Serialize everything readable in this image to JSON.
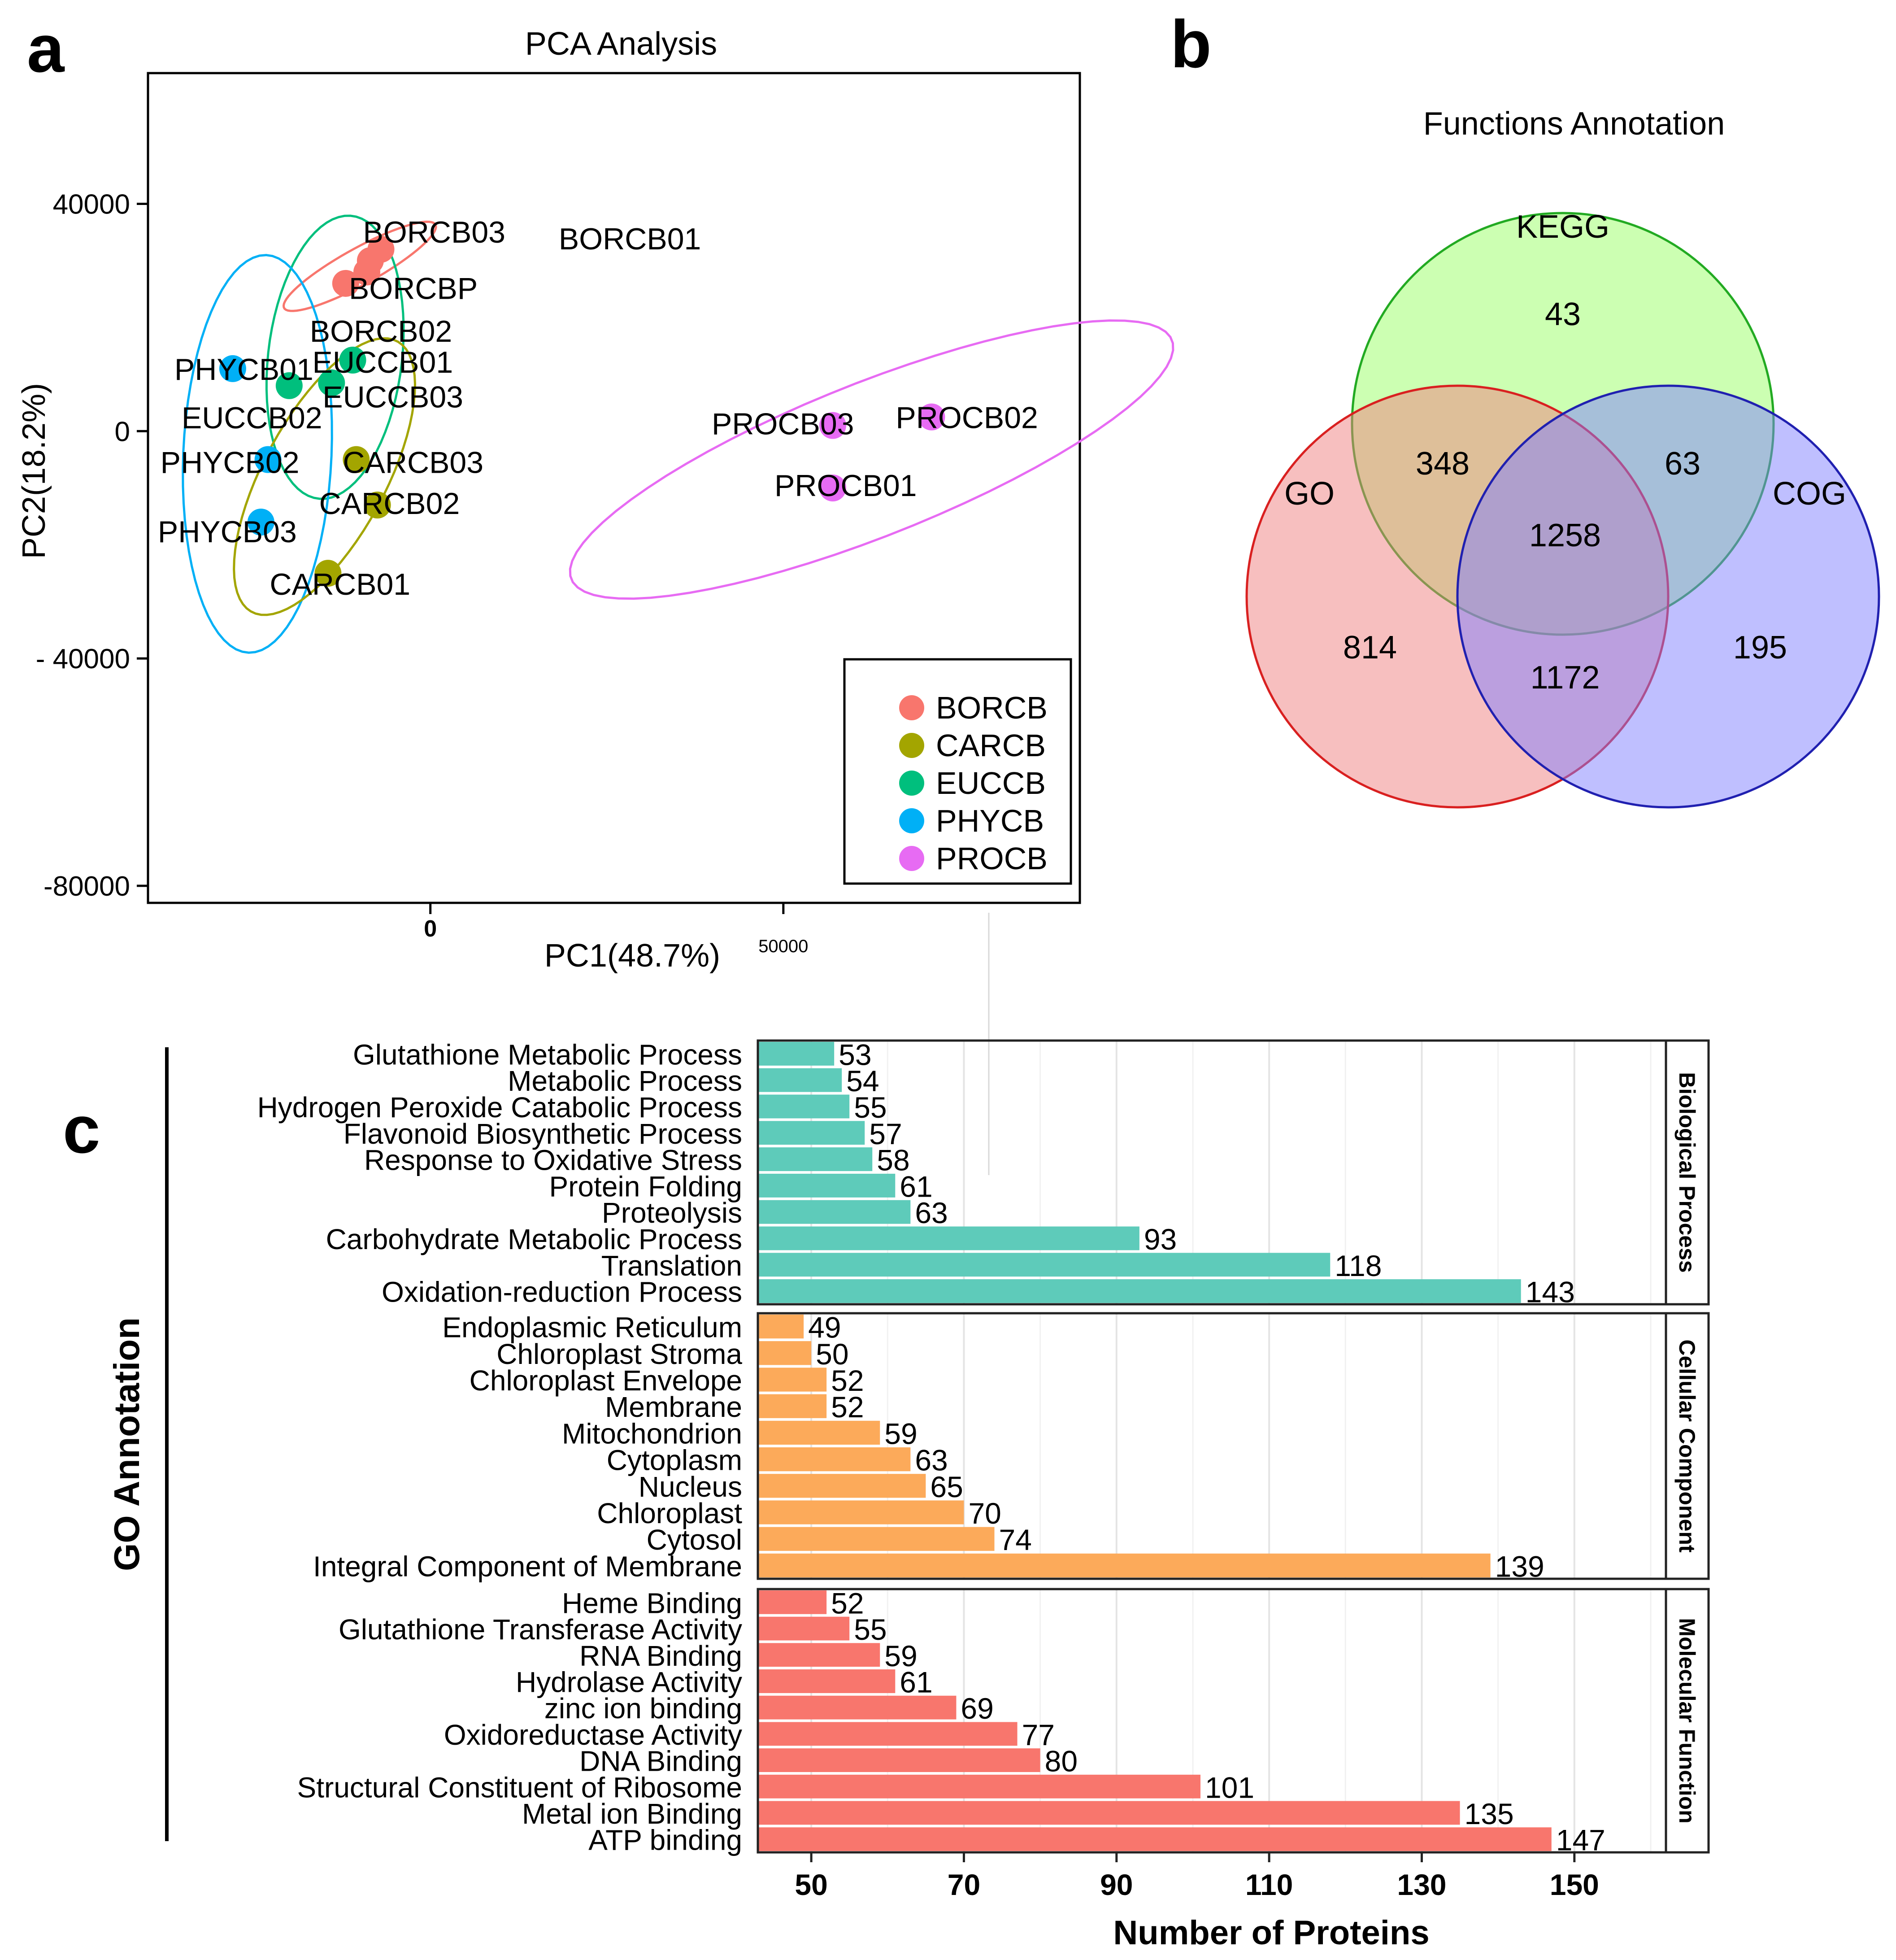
{
  "panels": {
    "a": {
      "label": "a"
    },
    "b": {
      "label": "b"
    },
    "c": {
      "label": "c"
    }
  },
  "colors": {
    "BORCB": "#f8766d",
    "CARCB": "#a3a500",
    "EUCCB": "#00bf7d",
    "PHYCB": "#00b0f6",
    "PROCB": "#e76bf3",
    "biological_process": "#5ecbba",
    "cellular_component": "#fcaa5a",
    "molecular_function": "#f8766d",
    "venn_go": "#f08080",
    "venn_kegg": "#99ff66",
    "venn_cog": "#8080ff"
  },
  "chart_data": [
    {
      "id": "pca",
      "type": "scatter",
      "title": "PCA Analysis",
      "xlabel": "PC1(48.7%)",
      "ylabel": "PC2(18.2%)",
      "xlim": [
        -40000,
        92000
      ],
      "ylim": [
        -83000,
        63000
      ],
      "xticks": [
        {
          "value": 0,
          "label": "0"
        },
        {
          "value": 50000,
          "label": "50000"
        }
      ],
      "yticks": [
        {
          "value": 40000,
          "label": "40000"
        },
        {
          "value": 0,
          "label": "0"
        },
        {
          "value": -40000,
          "label": "- 40000"
        },
        {
          "value": -80000,
          "label": "-80000"
        }
      ],
      "legend": {
        "position": "bottom-right",
        "entries": [
          "BORCB",
          "CARCB",
          "EUCCB",
          "PHYCB",
          "PROCB"
        ]
      },
      "series": [
        {
          "name": "BORCB",
          "points": [
            {
              "label": "BORCB03",
              "x": -7000,
              "y": 32000
            },
            {
              "label": "BORCBP",
              "x": -9000,
              "y": 28000
            },
            {
              "label": "BORCB02",
              "x": -12000,
              "y": 26000
            },
            {
              "label": "BORCB01",
              "x": -8500,
              "y": 30000
            }
          ]
        },
        {
          "name": "CARCB",
          "points": [
            {
              "label": "CARCB03",
              "x": -10500,
              "y": -5000
            },
            {
              "label": "CARCB02",
              "x": -7500,
              "y": -13000
            },
            {
              "label": "CARCB01",
              "x": -14500,
              "y": -25000
            }
          ]
        },
        {
          "name": "EUCCB",
          "points": [
            {
              "label": "EUCCB01",
              "x": -11000,
              "y": 12500
            },
            {
              "label": "EUCCB03",
              "x": -14000,
              "y": 8500
            },
            {
              "label": "EUCCB02",
              "x": -20000,
              "y": 8000
            }
          ]
        },
        {
          "name": "PHYCB",
          "points": [
            {
              "label": "PHYCB01",
              "x": -28000,
              "y": 11000
            },
            {
              "label": "PHYCB02",
              "x": -23000,
              "y": -5000
            },
            {
              "label": "PHYCB03",
              "x": -24000,
              "y": -16000
            }
          ]
        },
        {
          "name": "PROCB",
          "points": [
            {
              "label": "PROCB02",
              "x": 71000,
              "y": 2500
            },
            {
              "label": "PROCB03",
              "x": 57000,
              "y": 1000
            },
            {
              "label": "PROCB01",
              "x": 57000,
              "y": -10000
            }
          ]
        }
      ],
      "ellipses": [
        {
          "group": "BORCB",
          "cx": -10000,
          "cy": 29000,
          "rx": 13000,
          "ry": 3000,
          "angle_deg": 35
        },
        {
          "group": "EUCCB",
          "cx": -13500,
          "cy": 13000,
          "rx": 25000,
          "ry": 9500,
          "angle_deg": 85
        },
        {
          "group": "PHYCB",
          "cx": -24500,
          "cy": -4000,
          "rx": 35000,
          "ry": 10500,
          "angle_deg": 88
        },
        {
          "group": "CARCB",
          "cx": -15000,
          "cy": -8000,
          "rx": 26000,
          "ry": 9000,
          "angle_deg": 68
        },
        {
          "group": "PROCB",
          "cx": 62500,
          "cy": -5000,
          "rx": 47500,
          "ry": 13000,
          "angle_deg": 27
        }
      ]
    },
    {
      "id": "venn",
      "type": "venn",
      "title": "Functions Annotation",
      "sets": [
        "KEGG",
        "GO",
        "COG"
      ],
      "regions": [
        {
          "sets": [
            "KEGG"
          ],
          "value": 43
        },
        {
          "sets": [
            "GO",
            "KEGG"
          ],
          "value": 348
        },
        {
          "sets": [
            "KEGG",
            "COG"
          ],
          "value": 63
        },
        {
          "sets": [
            "GO",
            "KEGG",
            "COG"
          ],
          "value": 1258
        },
        {
          "sets": [
            "GO"
          ],
          "value": 814
        },
        {
          "sets": [
            "GO",
            "COG"
          ],
          "value": 1172
        },
        {
          "sets": [
            "COG"
          ],
          "value": 195
        }
      ]
    },
    {
      "id": "go_bar",
      "type": "bar",
      "orientation": "horizontal",
      "ylabel": "GO Annotation",
      "xlabel": "Number of Proteins",
      "xlim": [
        43,
        162
      ],
      "xticks": [
        50,
        70,
        90,
        110,
        130,
        150
      ],
      "facets": [
        {
          "name": "Biological Process",
          "color_key": "biological_process",
          "categories": [
            "Glutathione Metabolic Process",
            "Metabolic Process",
            "Hydrogen Peroxide Catabolic Process",
            "Flavonoid Biosynthetic Process",
            "Response to Oxidative Stress",
            "Protein Folding",
            "Proteolysis",
            "Carbohydrate Metabolic Process",
            "Translation",
            "Oxidation-reduction Process"
          ],
          "values": [
            53,
            54,
            55,
            57,
            58,
            61,
            63,
            93,
            118,
            143
          ]
        },
        {
          "name": "Cellular Component",
          "color_key": "cellular_component",
          "categories": [
            "Endoplasmic Reticulum",
            "Chloroplast Stroma",
            "Chloroplast Envelope",
            "Membrane",
            "Mitochondrion",
            "Cytoplasm",
            "Nucleus",
            "Chloroplast",
            "Cytosol",
            "Integral Component of Membrane"
          ],
          "values": [
            49,
            50,
            52,
            52,
            59,
            63,
            65,
            70,
            74,
            139
          ]
        },
        {
          "name": "Molecular Function",
          "color_key": "molecular_function",
          "categories": [
            "Heme Binding",
            "Glutathione Transferase Activity",
            "RNA Binding",
            "Hydrolase Activity",
            "zinc ion binding",
            "Oxidoreductase Activity",
            "DNA Binding",
            "Structural Constituent of Ribosome",
            "Metal ion Binding",
            "ATP binding"
          ],
          "values": [
            52,
            55,
            59,
            61,
            69,
            77,
            80,
            101,
            135,
            147
          ]
        }
      ]
    }
  ]
}
